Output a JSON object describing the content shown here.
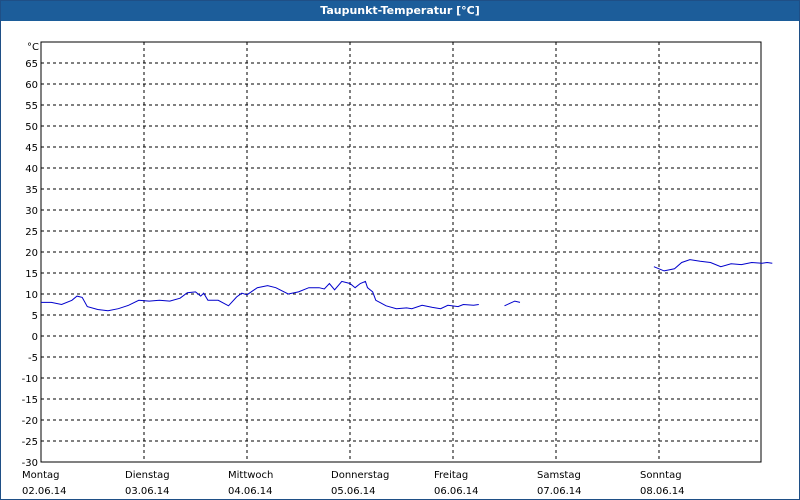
{
  "window": {
    "title": "Taupunkt-Temperatur [°C]"
  },
  "chart_data": {
    "type": "line",
    "title": "Taupunkt-Temperatur [°C]",
    "ylabel": "°C",
    "ylim": [
      -30,
      65
    ],
    "yticks": [
      65,
      60,
      55,
      50,
      45,
      40,
      35,
      30,
      25,
      20,
      15,
      10,
      5,
      0,
      -5,
      -10,
      -15,
      -20,
      -25,
      -30
    ],
    "xlim": [
      0,
      7
    ],
    "x_units": "days since start of chart (Monday 02.06.14 00:00)",
    "x_tick_labels": [
      {
        "day": "Montag",
        "date": "02.06.14"
      },
      {
        "day": "Dienstag",
        "date": "03.06.14"
      },
      {
        "day": "Mittwoch",
        "date": "04.06.14"
      },
      {
        "day": "Donnerstag",
        "date": "05.06.14"
      },
      {
        "day": "Freitag",
        "date": "06.06.14"
      },
      {
        "day": "Samstag",
        "date": "07.06.14"
      },
      {
        "day": "Sonntag",
        "date": "08.06.14"
      }
    ],
    "grid": true,
    "line_color": "#0000cc",
    "series": [
      {
        "segments": [
          [
            [
              0.0,
              8.0
            ],
            [
              0.1,
              8.0
            ],
            [
              0.2,
              7.5
            ],
            [
              0.3,
              8.5
            ],
            [
              0.35,
              9.5
            ],
            [
              0.4,
              9.2
            ],
            [
              0.45,
              7.0
            ],
            [
              0.55,
              6.3
            ],
            [
              0.65,
              6.0
            ],
            [
              0.75,
              6.5
            ],
            [
              0.85,
              7.3
            ],
            [
              0.95,
              8.5
            ],
            [
              1.05,
              8.3
            ],
            [
              1.15,
              8.5
            ],
            [
              1.25,
              8.3
            ],
            [
              1.35,
              9.0
            ],
            [
              1.42,
              10.3
            ],
            [
              1.5,
              10.5
            ],
            [
              1.55,
              9.5
            ],
            [
              1.58,
              10.2
            ],
            [
              1.62,
              8.5
            ],
            [
              1.72,
              8.5
            ],
            [
              1.82,
              7.2
            ],
            [
              1.9,
              9.3
            ],
            [
              1.95,
              10.2
            ],
            [
              2.0,
              9.8
            ],
            [
              2.1,
              11.5
            ],
            [
              2.2,
              12.0
            ],
            [
              2.28,
              11.5
            ],
            [
              2.4,
              10.0
            ],
            [
              2.5,
              10.5
            ],
            [
              2.6,
              11.5
            ],
            [
              2.7,
              11.5
            ],
            [
              2.75,
              11.2
            ],
            [
              2.8,
              12.5
            ],
            [
              2.85,
              11.0
            ],
            [
              2.92,
              13.0
            ],
            [
              3.0,
              12.5
            ],
            [
              3.05,
              11.5
            ],
            [
              3.1,
              12.5
            ],
            [
              3.15,
              13.0
            ],
            [
              3.17,
              11.5
            ],
            [
              3.22,
              10.5
            ],
            [
              3.25,
              8.5
            ],
            [
              3.35,
              7.2
            ],
            [
              3.45,
              6.5
            ],
            [
              3.55,
              6.7
            ],
            [
              3.6,
              6.5
            ],
            [
              3.7,
              7.3
            ],
            [
              3.8,
              6.8
            ],
            [
              3.88,
              6.5
            ],
            [
              3.95,
              7.3
            ],
            [
              4.05,
              7.0
            ],
            [
              4.1,
              7.5
            ],
            [
              4.2,
              7.3
            ],
            [
              4.25,
              7.5
            ]
          ],
          [
            [
              4.5,
              7.2
            ],
            [
              4.6,
              8.3
            ],
            [
              4.65,
              8.0
            ]
          ],
          [
            [
              5.95,
              16.5
            ],
            [
              6.05,
              15.5
            ],
            [
              6.15,
              16.0
            ],
            [
              6.22,
              17.5
            ],
            [
              6.3,
              18.2
            ],
            [
              6.4,
              17.8
            ],
            [
              6.5,
              17.5
            ],
            [
              6.6,
              16.5
            ],
            [
              6.7,
              17.2
            ],
            [
              6.8,
              17.0
            ],
            [
              6.9,
              17.5
            ],
            [
              7.0,
              17.3
            ],
            [
              7.05,
              17.5
            ],
            [
              7.1,
              17.3
            ]
          ]
        ]
      }
    ]
  }
}
